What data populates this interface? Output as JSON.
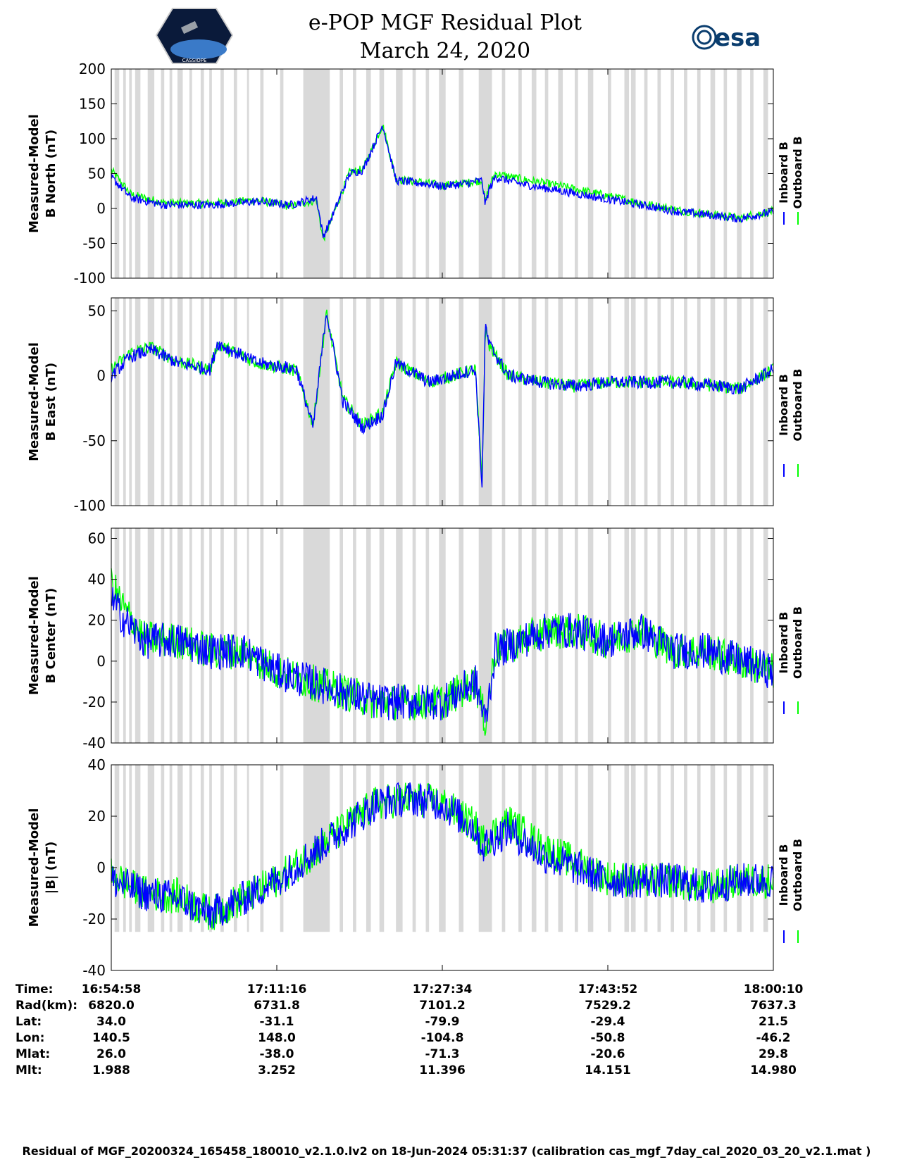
{
  "title": {
    "line1": "e-POP MGF Residual Plot",
    "line2": "March 24, 2020"
  },
  "logos": {
    "left": "cassiope-mission-logo",
    "left_text": "CASSIOPE",
    "right": "esa-logo",
    "right_text": "esa"
  },
  "legend": {
    "inboard": "Inboard B",
    "outboard": "Outboard B",
    "inboard_color": "#0000ff",
    "outboard_color": "#00ff00"
  },
  "colors": {
    "gap_shading": "#d9d9d9"
  },
  "chart_data": [
    {
      "type": "line",
      "ylabel_line1": "Measured-Model",
      "ylabel_line2": "B North (nT)",
      "ylim": [
        -100,
        200
      ],
      "yticks": [
        -100,
        -50,
        0,
        50,
        100,
        150,
        200
      ],
      "series": [
        {
          "name": "Inboard B",
          "x": [
            0.0,
            0.03,
            0.08,
            0.15,
            0.22,
            0.27,
            0.31,
            0.32,
            0.33,
            0.36,
            0.38,
            0.41,
            0.43,
            0.48,
            0.5,
            0.53,
            0.56,
            0.565,
            0.57,
            0.58,
            0.62,
            0.68,
            0.74,
            0.8,
            0.86,
            0.91,
            0.95,
            0.97,
            1.0
          ],
          "values": [
            45,
            15,
            5,
            5,
            10,
            5,
            15,
            -40,
            -20,
            50,
            55,
            120,
            40,
            35,
            32,
            35,
            40,
            5,
            25,
            45,
            35,
            25,
            15,
            5,
            -5,
            -10,
            -15,
            -10,
            -5
          ]
        },
        {
          "name": "Outboard B",
          "x": [
            0.0,
            0.03,
            0.08,
            0.15,
            0.22,
            0.27,
            0.31,
            0.32,
            0.33,
            0.36,
            0.38,
            0.41,
            0.43,
            0.48,
            0.5,
            0.53,
            0.56,
            0.565,
            0.57,
            0.58,
            0.62,
            0.68,
            0.74,
            0.8,
            0.86,
            0.91,
            0.95,
            0.97,
            1.0
          ],
          "values": [
            55,
            20,
            8,
            7,
            12,
            3,
            12,
            -45,
            -22,
            52,
            56,
            120,
            42,
            36,
            33,
            36,
            40,
            8,
            30,
            50,
            42,
            32,
            20,
            8,
            -3,
            -9,
            -14,
            -9,
            -4
          ]
        }
      ]
    },
    {
      "type": "line",
      "ylabel_line1": "Measured-Model",
      "ylabel_line2": "B East (nT)",
      "ylim": [
        -100,
        60
      ],
      "yticks": [
        -100,
        -50,
        0,
        50
      ],
      "series": [
        {
          "name": "Inboard B",
          "x": [
            0.0,
            0.03,
            0.06,
            0.1,
            0.15,
            0.16,
            0.22,
            0.28,
            0.305,
            0.325,
            0.35,
            0.38,
            0.41,
            0.43,
            0.48,
            0.55,
            0.56,
            0.565,
            0.57,
            0.6,
            0.65,
            0.7,
            0.75,
            0.8,
            0.85,
            0.9,
            0.95,
            1.0
          ],
          "values": [
            0,
            15,
            20,
            10,
            5,
            25,
            10,
            5,
            -40,
            50,
            -20,
            -40,
            -30,
            10,
            -5,
            5,
            -85,
            40,
            25,
            0,
            -5,
            -8,
            -5,
            -5,
            -5,
            -7,
            -10,
            5
          ]
        },
        {
          "name": "Outboard B",
          "x": [
            0.0,
            0.03,
            0.06,
            0.1,
            0.15,
            0.16,
            0.22,
            0.28,
            0.305,
            0.325,
            0.35,
            0.38,
            0.41,
            0.43,
            0.48,
            0.55,
            0.56,
            0.565,
            0.57,
            0.6,
            0.65,
            0.7,
            0.75,
            0.8,
            0.85,
            0.9,
            0.95,
            1.0
          ],
          "values": [
            5,
            18,
            22,
            11,
            5,
            24,
            10,
            4,
            -38,
            48,
            -18,
            -38,
            -28,
            10,
            -5,
            5,
            -83,
            38,
            24,
            0,
            -5,
            -8,
            -5,
            -5,
            -5,
            -7,
            -10,
            5
          ]
        }
      ]
    },
    {
      "type": "line",
      "ylabel_line1": "Measured-Model",
      "ylabel_line2": "B Center (nT)",
      "ylim": [
        -40,
        65
      ],
      "yticks": [
        -40,
        -20,
        0,
        20,
        40,
        60
      ],
      "series": [
        {
          "name": "Inboard B",
          "x": [
            0.0,
            0.02,
            0.05,
            0.1,
            0.15,
            0.2,
            0.25,
            0.3,
            0.35,
            0.4,
            0.45,
            0.5,
            0.55,
            0.565,
            0.58,
            0.62,
            0.66,
            0.7,
            0.75,
            0.8,
            0.85,
            0.9,
            0.95,
            1.0
          ],
          "values": [
            30,
            20,
            10,
            10,
            5,
            5,
            -5,
            -10,
            -15,
            -20,
            -20,
            -20,
            -10,
            -30,
            5,
            10,
            15,
            15,
            10,
            15,
            5,
            5,
            0,
            -5
          ]
        },
        {
          "name": "Outboard B",
          "x": [
            0.0,
            0.02,
            0.05,
            0.1,
            0.15,
            0.2,
            0.25,
            0.3,
            0.35,
            0.4,
            0.45,
            0.5,
            0.55,
            0.565,
            0.58,
            0.62,
            0.66,
            0.7,
            0.75,
            0.8,
            0.85,
            0.9,
            0.95,
            1.0
          ],
          "values": [
            38,
            25,
            11,
            10,
            5,
            5,
            -5,
            -10,
            -15,
            -20,
            -20,
            -20,
            -10,
            -30,
            5,
            10,
            15,
            15,
            10,
            15,
            5,
            5,
            0,
            -5
          ]
        }
      ]
    },
    {
      "type": "line",
      "ylabel_line1": "Measured-Model",
      "ylabel_line2": "|B| (nT)",
      "ylim": [
        -40,
        40
      ],
      "yticks": [
        -40,
        -20,
        0,
        20,
        40
      ],
      "series": [
        {
          "name": "Inboard B",
          "x": [
            0.0,
            0.05,
            0.1,
            0.15,
            0.2,
            0.25,
            0.3,
            0.35,
            0.4,
            0.45,
            0.5,
            0.55,
            0.56,
            0.6,
            0.65,
            0.7,
            0.75,
            0.8,
            0.85,
            0.9,
            0.95,
            1.0
          ],
          "values": [
            -5,
            -10,
            -12,
            -18,
            -12,
            -5,
            5,
            15,
            25,
            27,
            25,
            15,
            8,
            15,
            5,
            0,
            -5,
            -5,
            -5,
            -8,
            -5,
            -5
          ]
        },
        {
          "name": "Outboard B",
          "x": [
            0.0,
            0.05,
            0.1,
            0.15,
            0.2,
            0.25,
            0.3,
            0.35,
            0.4,
            0.45,
            0.5,
            0.55,
            0.56,
            0.6,
            0.65,
            0.7,
            0.75,
            0.8,
            0.85,
            0.9,
            0.95,
            1.0
          ],
          "values": [
            -3,
            -10,
            -11,
            -18,
            -12,
            -5,
            5,
            15,
            25,
            27,
            25,
            16,
            10,
            18,
            8,
            2,
            -4,
            -5,
            -5,
            -8,
            -5,
            -5
          ]
        }
      ]
    }
  ],
  "gaps": [
    [
      0.005,
      0.012
    ],
    [
      0.018,
      0.022
    ],
    [
      0.027,
      0.031
    ],
    [
      0.036,
      0.044
    ],
    [
      0.055,
      0.065
    ],
    [
      0.075,
      0.08
    ],
    [
      0.088,
      0.092
    ],
    [
      0.1,
      0.108
    ],
    [
      0.118,
      0.122
    ],
    [
      0.135,
      0.14
    ],
    [
      0.148,
      0.152
    ],
    [
      0.165,
      0.17
    ],
    [
      0.185,
      0.19
    ],
    [
      0.205,
      0.208
    ],
    [
      0.225,
      0.23
    ],
    [
      0.255,
      0.26
    ],
    [
      0.29,
      0.33
    ],
    [
      0.345,
      0.35
    ],
    [
      0.365,
      0.37
    ],
    [
      0.385,
      0.392
    ],
    [
      0.405,
      0.412
    ],
    [
      0.43,
      0.44
    ],
    [
      0.455,
      0.46
    ],
    [
      0.475,
      0.48
    ],
    [
      0.495,
      0.505
    ],
    [
      0.525,
      0.532
    ],
    [
      0.555,
      0.575
    ],
    [
      0.59,
      0.595
    ],
    [
      0.615,
      0.62
    ],
    [
      0.635,
      0.642
    ],
    [
      0.655,
      0.66
    ],
    [
      0.675,
      0.682
    ],
    [
      0.7,
      0.705
    ],
    [
      0.72,
      0.728
    ],
    [
      0.75,
      0.755
    ],
    [
      0.775,
      0.782
    ],
    [
      0.785,
      0.792
    ],
    [
      0.805,
      0.81
    ],
    [
      0.825,
      0.83
    ],
    [
      0.845,
      0.85
    ],
    [
      0.865,
      0.87
    ],
    [
      0.885,
      0.89
    ],
    [
      0.905,
      0.912
    ],
    [
      0.925,
      0.93
    ],
    [
      0.945,
      0.952
    ],
    [
      0.965,
      0.97
    ],
    [
      0.985,
      0.992
    ]
  ],
  "xaxis": {
    "row_labels": [
      "Time:",
      "Rad(km):",
      "Lat:",
      "Lon:",
      "Mlat:",
      "Mlt:"
    ],
    "columns": [
      [
        "16:54:58",
        "6820.0",
        "34.0",
        "140.5",
        "26.0",
        "1.988"
      ],
      [
        "17:11:16",
        "6731.8",
        "-31.1",
        "148.0",
        "-38.0",
        "3.252"
      ],
      [
        "17:27:34",
        "7101.2",
        "-79.9",
        "-104.8",
        "-71.3",
        "11.396"
      ],
      [
        "17:43:52",
        "7529.2",
        "-29.4",
        "-50.8",
        "-20.6",
        "14.151"
      ],
      [
        "18:00:10",
        "7637.3",
        "21.5",
        "-46.2",
        "29.8",
        "14.980"
      ]
    ]
  },
  "footer": "Residual of MGF_20200324_165458_180010_v2.1.0.lv2 on 18-Jun-2024 05:31:37 (calibration cas_mgf_7day_cal_2020_03_20_v2.1.mat )"
}
